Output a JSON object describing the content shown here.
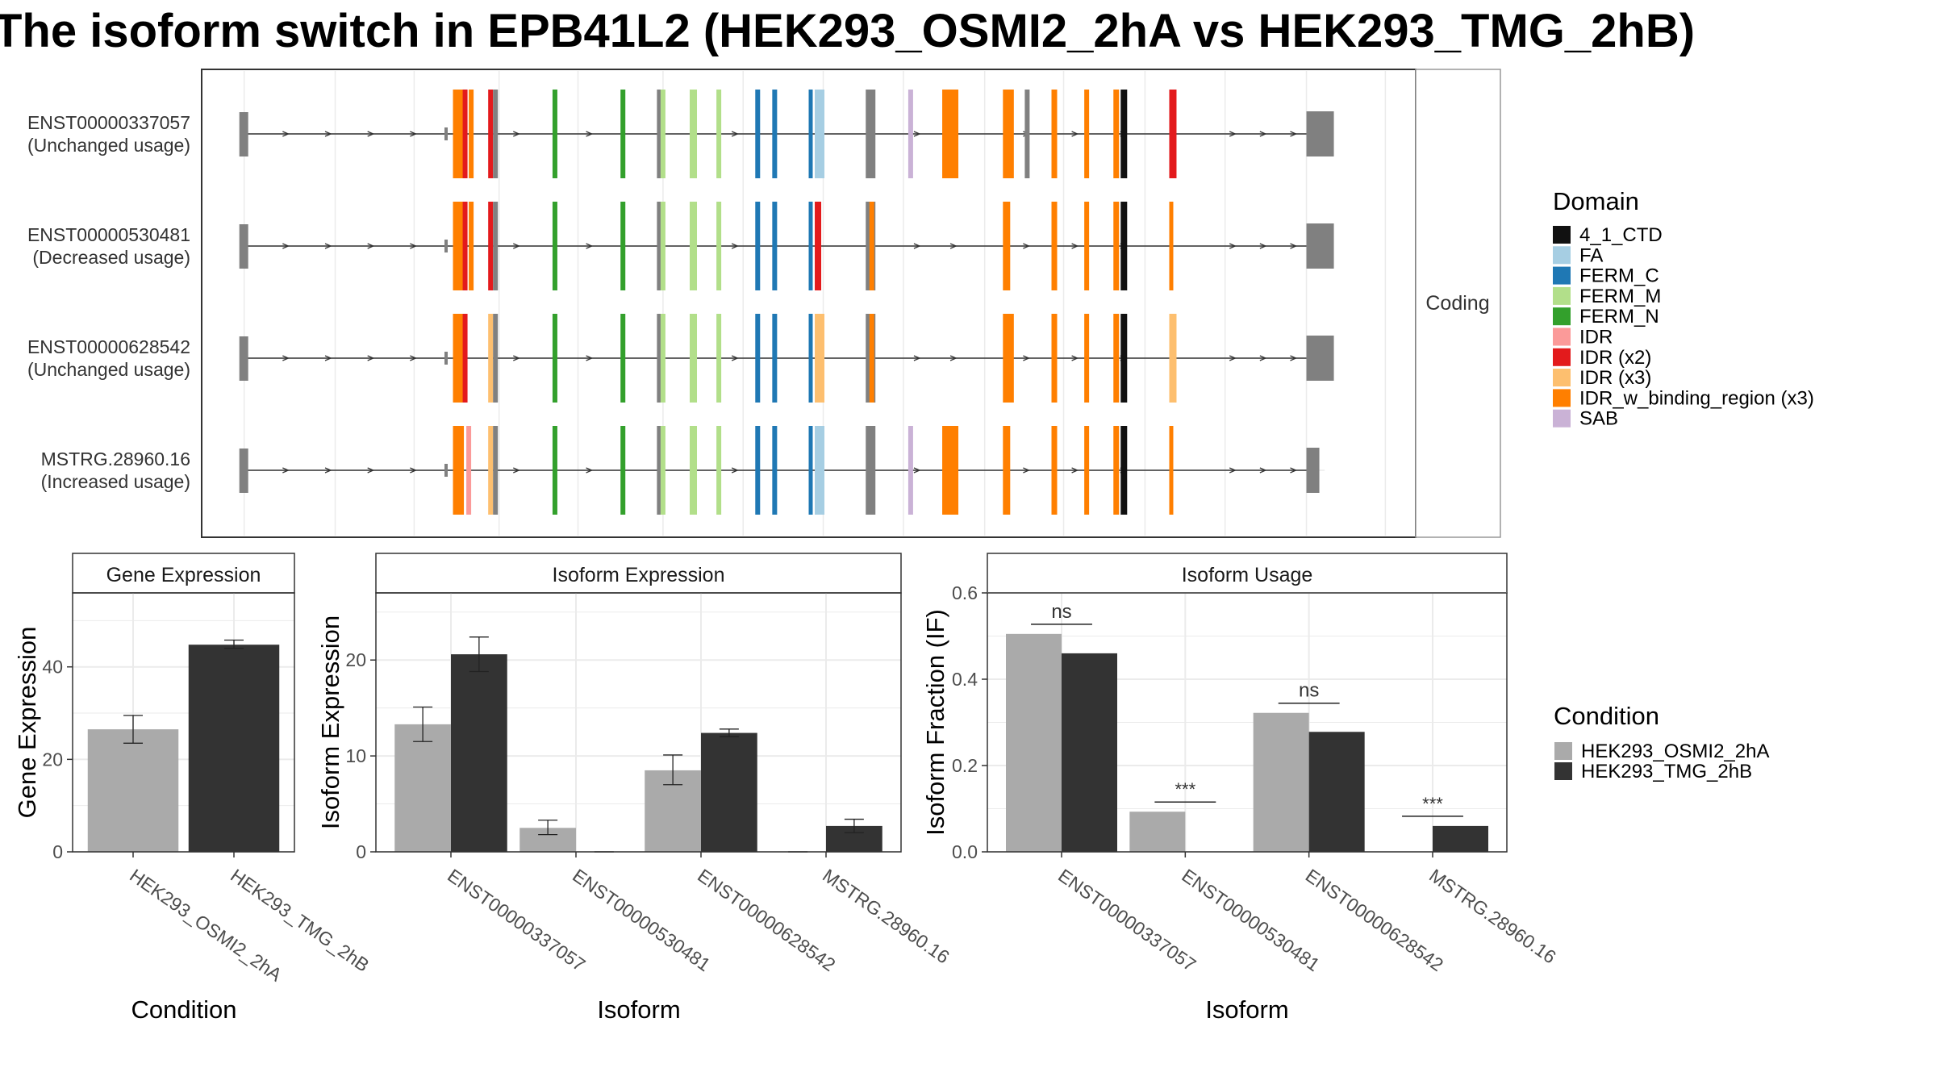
{
  "title": "The isoform switch in EPB41L2 (HEK293_OSMI2_2hA vs HEK293_TMG_2hB)",
  "colors": {
    "condA": "#aaaaaa",
    "condB": "#333333",
    "grid": "#ebebeb",
    "panel_border": "#333333",
    "strip_border": "#333333"
  },
  "domain_legend": {
    "title": "Domain",
    "items": [
      {
        "label": "4_1_CTD",
        "color": "#111111"
      },
      {
        "label": "FA",
        "color": "#a6cee3"
      },
      {
        "label": "FERM_C",
        "color": "#1f78b4"
      },
      {
        "label": "FERM_M",
        "color": "#b2df8a"
      },
      {
        "label": "FERM_N",
        "color": "#33a02c"
      },
      {
        "label": "IDR",
        "color": "#fb9a99"
      },
      {
        "label": "IDR (x2)",
        "color": "#e31a1c"
      },
      {
        "label": "IDR (x3)",
        "color": "#fdbf6f"
      },
      {
        "label": "IDR_w_binding_region (x3)",
        "color": "#ff7f00"
      },
      {
        "label": "SAB",
        "color": "#cab2d6"
      }
    ]
  },
  "condition_legend": {
    "title": "Condition",
    "items": [
      {
        "label": "HEK293_OSMI2_2hA",
        "color": "#aaaaaa"
      },
      {
        "label": "HEK293_TMG_2hB",
        "color": "#333333"
      }
    ]
  },
  "structure": {
    "facet_label": "Coding",
    "isoforms": [
      {
        "id": "ENST00000337057",
        "usage": "(Unchanged usage)",
        "exons": [
          [
            "g",
            0.035
          ],
          [
            "o",
            0.207
          ],
          [
            "o",
            0.212
          ],
          [
            "r",
            0.215
          ],
          [
            "o",
            0.22
          ],
          [
            "r",
            0.236
          ],
          [
            "g",
            0.24
          ],
          [
            "n",
            0.289
          ],
          [
            "n",
            0.345
          ],
          [
            "g",
            0.375
          ],
          [
            "m",
            0.378
          ],
          [
            "m",
            0.402
          ],
          [
            "m",
            0.424
          ],
          [
            "c",
            0.456
          ],
          [
            "c",
            0.47
          ],
          [
            "c",
            0.5
          ],
          [
            "f",
            0.505
          ],
          [
            "g",
            0.547
          ],
          [
            "s",
            0.582
          ],
          [
            "o",
            0.61
          ],
          [
            "o",
            0.66
          ],
          [
            "o",
            0.665
          ],
          [
            "g",
            0.678
          ],
          [
            "o",
            0.7
          ],
          [
            "o",
            0.727
          ],
          [
            "o",
            0.751
          ],
          [
            "k",
            0.757
          ],
          [
            "r",
            0.797
          ]
        ]
      },
      {
        "id": "ENST00000530481",
        "usage": "(Decreased usage)",
        "exons": [
          [
            "g",
            0.035
          ],
          [
            "o",
            0.207
          ],
          [
            "o",
            0.212
          ],
          [
            "r",
            0.215
          ],
          [
            "o",
            0.22
          ],
          [
            "r",
            0.236
          ],
          [
            "g",
            0.24
          ],
          [
            "n",
            0.289
          ],
          [
            "n",
            0.345
          ],
          [
            "g",
            0.375
          ],
          [
            "m",
            0.378
          ],
          [
            "m",
            0.402
          ],
          [
            "m",
            0.424
          ],
          [
            "c",
            0.456
          ],
          [
            "c",
            0.47
          ],
          [
            "c",
            0.5
          ],
          [
            "r",
            0.505
          ],
          [
            "g",
            0.547
          ],
          [
            "o",
            0.55
          ],
          [
            "o",
            0.66
          ],
          [
            "o",
            0.7
          ],
          [
            "o",
            0.727
          ],
          [
            "o",
            0.751
          ],
          [
            "k",
            0.757
          ],
          [
            "o",
            0.797
          ]
        ]
      },
      {
        "id": "ENST00000628542",
        "usage": "(Unchanged usage)",
        "exons": [
          [
            "g",
            0.035
          ],
          [
            "o",
            0.207
          ],
          [
            "o",
            0.212
          ],
          [
            "r",
            0.215
          ],
          [
            "h",
            0.236
          ],
          [
            "g",
            0.24
          ],
          [
            "n",
            0.289
          ],
          [
            "n",
            0.345
          ],
          [
            "g",
            0.375
          ],
          [
            "m",
            0.378
          ],
          [
            "m",
            0.402
          ],
          [
            "m",
            0.424
          ],
          [
            "c",
            0.456
          ],
          [
            "c",
            0.47
          ],
          [
            "c",
            0.5
          ],
          [
            "h",
            0.505
          ],
          [
            "g",
            0.547
          ],
          [
            "o",
            0.55
          ],
          [
            "o",
            0.66
          ],
          [
            "o",
            0.665
          ],
          [
            "o",
            0.7
          ],
          [
            "o",
            0.727
          ],
          [
            "o",
            0.751
          ],
          [
            "k",
            0.757
          ],
          [
            "h",
            0.797
          ]
        ]
      },
      {
        "id": "MSTRG.28960.16",
        "usage": "(Increased usage)",
        "exons": [
          [
            "g",
            0.035
          ],
          [
            "o",
            0.207
          ],
          [
            "o",
            0.212
          ],
          [
            "p",
            0.218
          ],
          [
            "h",
            0.236
          ],
          [
            "g",
            0.24
          ],
          [
            "n",
            0.289
          ],
          [
            "n",
            0.345
          ],
          [
            "g",
            0.375
          ],
          [
            "m",
            0.378
          ],
          [
            "m",
            0.402
          ],
          [
            "m",
            0.424
          ],
          [
            "c",
            0.456
          ],
          [
            "c",
            0.47
          ],
          [
            "c",
            0.5
          ],
          [
            "f",
            0.505
          ],
          [
            "g",
            0.547
          ],
          [
            "s",
            0.582
          ],
          [
            "o",
            0.61
          ],
          [
            "o",
            0.66
          ],
          [
            "o",
            0.7
          ],
          [
            "o",
            0.727
          ],
          [
            "o",
            0.751
          ],
          [
            "k",
            0.757
          ],
          [
            "o",
            0.797
          ]
        ]
      }
    ]
  },
  "chart_data": [
    {
      "type": "bar",
      "title": "Gene Expression",
      "xlabel": "Condition",
      "ylabel": "Gene Expression",
      "categories": [
        "HEK293_OSMI2_2hA",
        "HEK293_TMG_2hB"
      ],
      "values": [
        26.5,
        44.8
      ],
      "errors": [
        [
          23.5,
          29.5
        ],
        [
          44.0,
          45.8
        ]
      ],
      "ylim": [
        0,
        56
      ],
      "yticks": [
        0,
        20,
        40
      ]
    },
    {
      "type": "bar",
      "title": "Isoform Expression",
      "xlabel": "Isoform",
      "ylabel": "Isoform Expression",
      "categories": [
        "ENST00000337057",
        "ENST00000530481",
        "ENST00000628542",
        "MSTRG.28960.16"
      ],
      "series": [
        {
          "name": "HEK293_OSMI2_2hA",
          "values": [
            13.3,
            2.5,
            8.5,
            0.0
          ],
          "errors": [
            [
              11.5,
              15.1
            ],
            [
              1.8,
              3.3
            ],
            [
              7.0,
              10.1
            ],
            [
              0.0,
              0.0
            ]
          ]
        },
        {
          "name": "HEK293_TMG_2hB",
          "values": [
            20.6,
            0.0,
            12.4,
            2.7
          ],
          "errors": [
            [
              18.8,
              22.4
            ],
            [
              0.0,
              0.0
            ],
            [
              12.0,
              12.8
            ],
            [
              2.0,
              3.4
            ]
          ]
        }
      ],
      "ylim": [
        0,
        27
      ],
      "yticks": [
        0,
        10,
        20
      ]
    },
    {
      "type": "bar",
      "title": "Isoform Usage",
      "xlabel": "Isoform",
      "ylabel": "Isoform Fraction (IF)",
      "categories": [
        "ENST00000337057",
        "ENST00000530481",
        "ENST00000628542",
        "MSTRG.28960.16"
      ],
      "series": [
        {
          "name": "HEK293_OSMI2_2hA",
          "values": [
            0.505,
            0.093,
            0.322,
            0.0
          ]
        },
        {
          "name": "HEK293_TMG_2hB",
          "values": [
            0.46,
            0.0,
            0.278,
            0.06
          ]
        }
      ],
      "significance": [
        "ns",
        "***",
        "ns",
        "***"
      ],
      "ylim": [
        0,
        0.6
      ],
      "yticks": [
        0.0,
        0.2,
        0.4,
        0.6
      ]
    }
  ]
}
